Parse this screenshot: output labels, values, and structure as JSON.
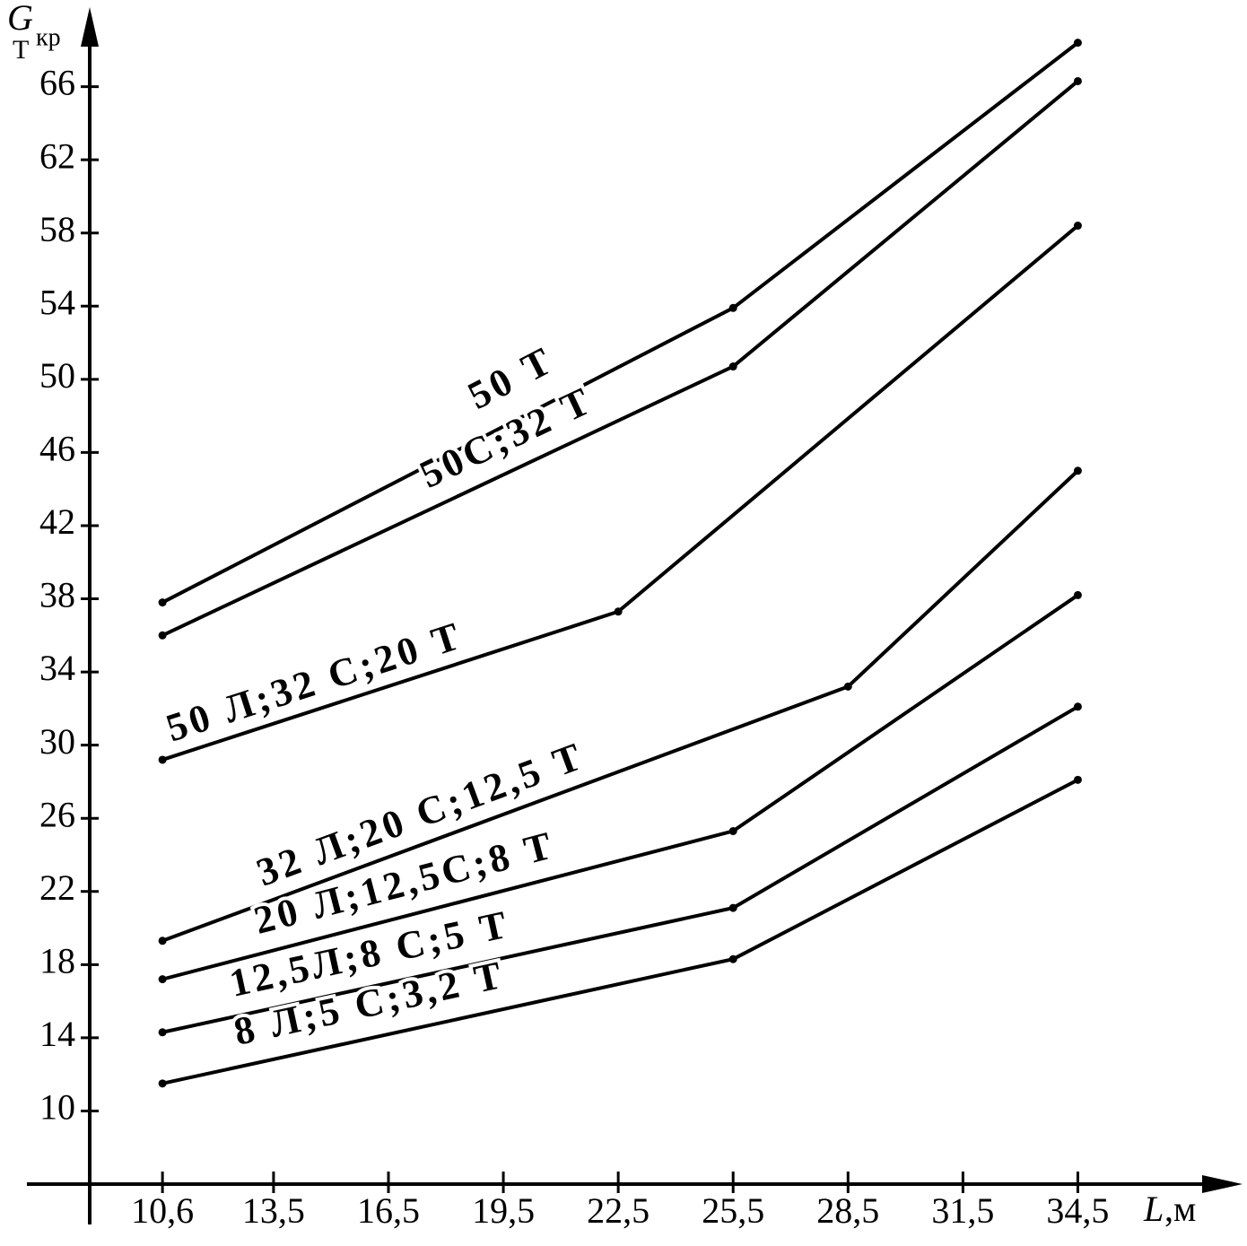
{
  "chart_data": {
    "type": "line",
    "y_label_symbol": "G",
    "y_label_sub": "Т",
    "y_label_sup": "кр",
    "x_label_symbol": "L",
    "x_label_unit": ",м",
    "xlim": [
      8.7,
      38.8
    ],
    "xticks": [
      {
        "value": 10.6,
        "label": "10,6"
      },
      {
        "value": 13.5,
        "label": "13,5"
      },
      {
        "value": 16.5,
        "label": "16,5"
      },
      {
        "value": 19.5,
        "label": "19,5"
      },
      {
        "value": 22.5,
        "label": "22,5"
      },
      {
        "value": 25.5,
        "label": "25,5"
      },
      {
        "value": 28.5,
        "label": "28,5"
      },
      {
        "value": 31.5,
        "label": "31,5"
      },
      {
        "value": 34.5,
        "label": "34,5"
      }
    ],
    "ylim": [
      6,
      70
    ],
    "yticks": [
      10,
      14,
      18,
      22,
      26,
      30,
      34,
      38,
      42,
      46,
      50,
      54,
      58,
      62,
      66
    ],
    "grid": false,
    "series": [
      {
        "name": "50 Т",
        "color": "#000000",
        "x": [
          10.6,
          25.5,
          34.5
        ],
        "values": [
          37.8,
          53.9,
          68.4
        ]
      },
      {
        "name": "50С;32 Т",
        "color": "#000000",
        "x": [
          10.6,
          25.5,
          34.5
        ],
        "values": [
          36.0,
          50.7,
          66.3
        ]
      },
      {
        "name": "50 Л;32 С;20 Т",
        "color": "#000000",
        "x": [
          10.6,
          22.5,
          34.5
        ],
        "values": [
          29.2,
          37.3,
          58.4
        ]
      },
      {
        "name": "32 Л;20 С;12,5 Т",
        "color": "#000000",
        "x": [
          10.6,
          28.5,
          34.5
        ],
        "values": [
          19.3,
          33.2,
          45.0
        ]
      },
      {
        "name": "20 Л;12,5С;8 Т",
        "color": "#000000",
        "x": [
          10.6,
          25.5,
          34.5
        ],
        "values": [
          17.2,
          25.3,
          38.2
        ]
      },
      {
        "name": "12,5Л;8 С;5 Т",
        "color": "#000000",
        "x": [
          10.6,
          25.5,
          34.5
        ],
        "values": [
          14.3,
          21.1,
          32.1
        ]
      },
      {
        "name": "8 Л;5 С;3,2 Т",
        "color": "#000000",
        "x": [
          10.6,
          25.5,
          34.5
        ],
        "values": [
          11.5,
          18.3,
          28.1
        ]
      }
    ]
  }
}
